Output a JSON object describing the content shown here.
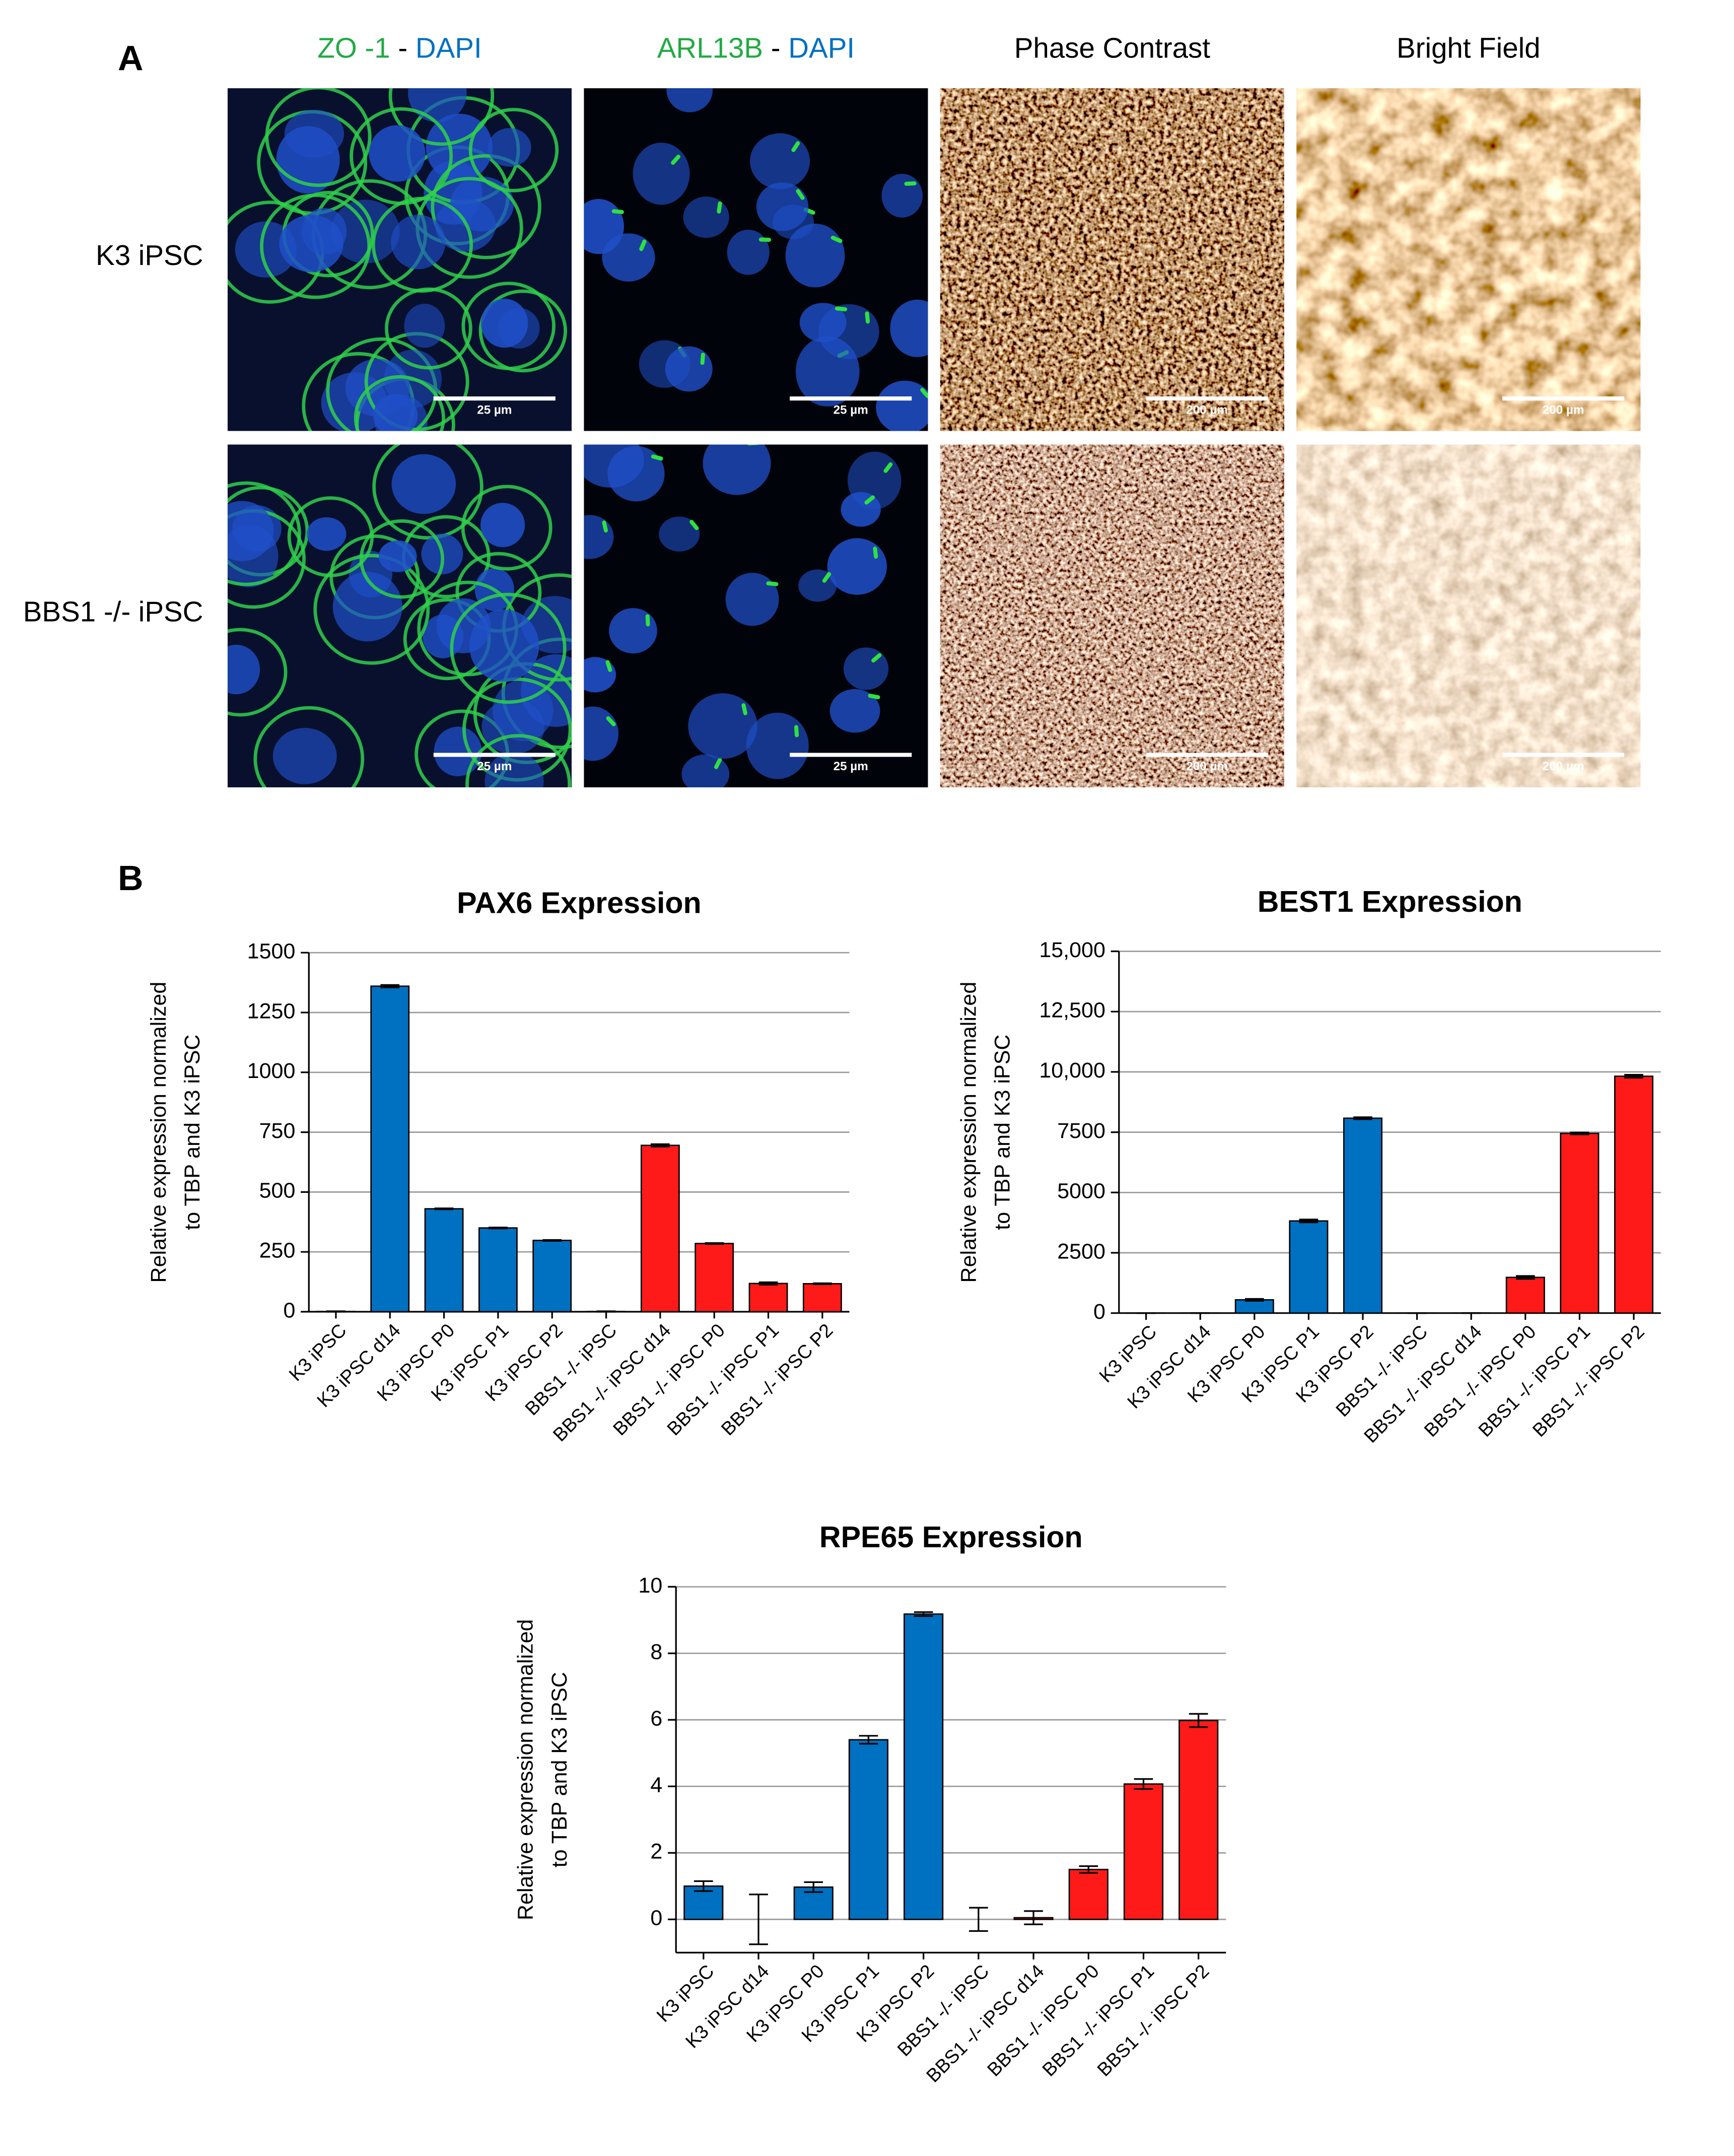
{
  "panel_a": {
    "label": "A",
    "column_headers": [
      [
        "ZO -1",
        " - ",
        "DAPI"
      ],
      [
        "ARL13B",
        " - ",
        "DAPI"
      ],
      [
        "Phase Contrast"
      ],
      [
        "Bright Field"
      ]
    ],
    "row_labels": [
      "K3 iPSC",
      "BBS1 -/- iPSC"
    ],
    "scale_bars": [
      [
        "25 µm",
        "25 µm",
        "200 µm",
        "200 µm"
      ],
      [
        "25 µm",
        "25 µm",
        "200 µm",
        "200 µm"
      ]
    ]
  },
  "panel_b": {
    "label": "B"
  },
  "chart_data": [
    {
      "type": "bar",
      "title": "PAX6 Expression",
      "y_label": [
        "Relative expression normalized",
        "to TBP and K3 iPSC"
      ],
      "categories": [
        "K3 iPSC",
        "K3 iPSC d14",
        "K3 iPSC P0",
        "K3 iPSC P1",
        "K3 iPSC P2",
        "BBS1 -/- iPSC",
        "BBS1 -/- iPSC d14",
        "BBS1 -/- iPSC P0",
        "BBS1 -/- iPSC P1",
        "BBS1 -/- iPSC P2"
      ],
      "values": [
        1,
        1360,
        430,
        350,
        298,
        1,
        695,
        285,
        118,
        117
      ],
      "errors": [
        1,
        5,
        2,
        2,
        2,
        1,
        5,
        2,
        5,
        2
      ],
      "colors": [
        "#0070c0",
        "#0070c0",
        "#0070c0",
        "#0070c0",
        "#0070c0",
        "#ff1a1a",
        "#ff1a1a",
        "#ff1a1a",
        "#ff1a1a",
        "#ff1a1a"
      ],
      "ylim": [
        0,
        1500
      ],
      "yticks": [
        0,
        250,
        500,
        750,
        1000,
        1250,
        1500
      ],
      "grid": true
    },
    {
      "type": "bar",
      "title": "BEST1 Expression",
      "y_label": [
        "Relative expression normalized",
        "to TBP and K3 iPSC"
      ],
      "categories": [
        "K3 iPSC",
        "K3 iPSC d14",
        "K3 iPSC P0",
        "K3 iPSC P1",
        "K3 iPSC P2",
        "BBS1 -/- iPSC",
        "BBS1 -/- iPSC d14",
        "BBS1 -/- iPSC P0",
        "BBS1 -/- iPSC P1",
        "BBS1 -/- iPSC P2"
      ],
      "values": [
        1,
        2,
        550,
        3820,
        8080,
        1,
        2,
        1480,
        7450,
        9820
      ],
      "errors": [
        1,
        1,
        40,
        60,
        40,
        1,
        1,
        60,
        40,
        60
      ],
      "colors": [
        "#0070c0",
        "#0070c0",
        "#0070c0",
        "#0070c0",
        "#0070c0",
        "#ff1a1a",
        "#ff1a1a",
        "#ff1a1a",
        "#ff1a1a",
        "#ff1a1a"
      ],
      "ylim": [
        0,
        15000
      ],
      "yticks": [
        0,
        2500,
        5000,
        7500,
        {
          "value": 10000,
          "label": "10,000"
        },
        {
          "value": 12500,
          "label": "12,500"
        },
        {
          "value": 15000,
          "label": "15,000"
        }
      ],
      "grid": true
    },
    {
      "type": "bar",
      "title": "RPE65 Expression",
      "y_label": [
        "Relative expression normalized",
        "to TBP and K3 iPSC"
      ],
      "categories": [
        "K3 iPSC",
        "K3 iPSC d14",
        "K3 iPSC P0",
        "K3 iPSC P1",
        "K3 iPSC P2",
        "BBS1 -/- iPSC",
        "BBS1 -/- iPSC d14",
        "BBS1 -/- iPSC P0",
        "BBS1 -/- iPSC P1",
        "BBS1 -/- iPSC P2"
      ],
      "values": [
        1.0,
        0,
        0.97,
        5.4,
        9.18,
        0,
        0.05,
        1.5,
        4.07,
        5.98
      ],
      "errors": [
        0.15,
        0.75,
        0.15,
        0.12,
        0.06,
        0.35,
        0.2,
        0.1,
        0.15,
        0.2
      ],
      "colors": [
        "#0070c0",
        "#0070c0",
        "#0070c0",
        "#0070c0",
        "#0070c0",
        "#ff1a1a",
        "#ff1a1a",
        "#ff1a1a",
        "#ff1a1a",
        "#ff1a1a"
      ],
      "ylim": [
        -1,
        10
      ],
      "yticks": [
        0,
        2,
        4,
        6,
        8,
        10
      ],
      "grid": true
    }
  ]
}
